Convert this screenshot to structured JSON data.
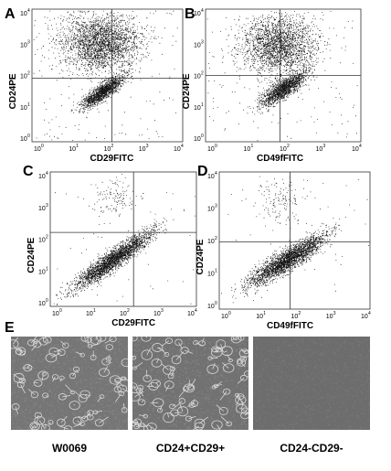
{
  "tick_base": "10",
  "panels": [
    {
      "label": "A",
      "x_label": "CD29FITC",
      "y_label": "CD24PE",
      "ticks": [
        "0",
        "1",
        "2",
        "3",
        "4"
      ]
    },
    {
      "label": "B",
      "x_label": "CD49fFITC",
      "y_label": "CD24PE",
      "ticks": [
        "0",
        "1",
        "2",
        "3",
        "4"
      ]
    },
    {
      "label": "C",
      "x_label": "CD29FITC",
      "y_label": "CD24PE",
      "ticks": [
        "0",
        "1",
        "2",
        "3",
        "4"
      ]
    },
    {
      "label": "D",
      "x_label": "CD49fFITC",
      "y_label": "CD24PE",
      "ticks": [
        "0",
        "1",
        "2",
        "3",
        "4"
      ]
    }
  ],
  "panel_e": {
    "label": "E",
    "images": [
      {
        "caption": "W0069"
      },
      {
        "caption": "CD24+CD29+"
      },
      {
        "caption": "CD24-CD29-"
      }
    ]
  }
}
